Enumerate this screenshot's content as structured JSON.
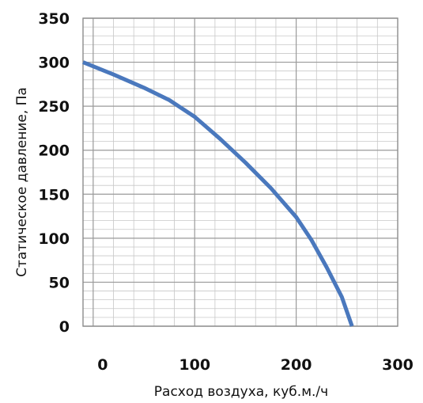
{
  "chart_data": {
    "type": "line",
    "xlabel": "Расход воздуха, куб.м./ч",
    "ylabel": "Статическое давление, Па",
    "xlim": [
      -10,
      300
    ],
    "ylim": [
      0,
      350
    ],
    "x_ticks": [
      "0",
      "100",
      "200",
      "300"
    ],
    "y_ticks": [
      "0",
      "50",
      "100",
      "150",
      "200",
      "250",
      "300",
      "350"
    ],
    "grid": true,
    "legend": "none",
    "series": [
      {
        "color": "#4a78bd",
        "x": [
          -10,
          20,
          50,
          75,
          100,
          125,
          150,
          175,
          200,
          215,
          230,
          245,
          255
        ],
        "y": [
          300,
          286,
          271,
          257,
          238,
          213,
          186,
          157,
          124,
          98,
          67,
          33,
          0
        ]
      }
    ]
  }
}
